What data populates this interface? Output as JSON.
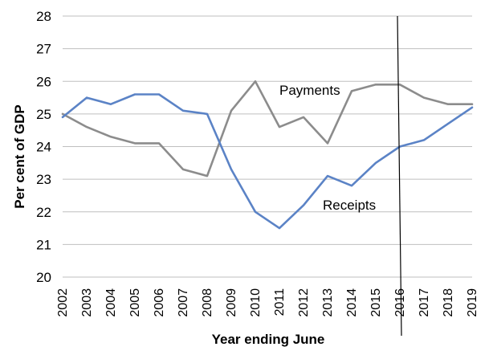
{
  "chart_data": {
    "type": "line",
    "title": "",
    "xlabel": "Year ending June",
    "ylabel": "Per cent of GDP",
    "x": [
      "2002",
      "2003",
      "2004",
      "2005",
      "2006",
      "2007",
      "2008",
      "2009",
      "2010",
      "2011",
      "2012",
      "2013",
      "2014",
      "2015",
      "2016",
      "2017",
      "2018",
      "2019"
    ],
    "ylim": [
      20,
      28
    ],
    "yticks": [
      20,
      21,
      22,
      23,
      24,
      25,
      26,
      27,
      28
    ],
    "grid": true,
    "legend": "none (series labelled inline)",
    "series": [
      {
        "name": "Payments",
        "color": "#8c8c8c",
        "values": [
          25.0,
          24.6,
          24.3,
          24.1,
          24.1,
          23.3,
          23.1,
          25.1,
          26.0,
          24.6,
          24.9,
          24.1,
          25.7,
          25.9,
          25.9,
          25.5,
          25.3,
          25.3
        ]
      },
      {
        "name": "Receipts",
        "color": "#5b83c6",
        "values": [
          24.9,
          25.5,
          25.3,
          25.6,
          25.6,
          25.1,
          25.0,
          23.3,
          22.0,
          21.5,
          22.2,
          23.1,
          22.8,
          23.5,
          24.0,
          24.2,
          24.7,
          25.2
        ]
      }
    ],
    "annotations": [
      {
        "type": "vertical-line",
        "x": "2016",
        "color": "#000000"
      }
    ]
  }
}
